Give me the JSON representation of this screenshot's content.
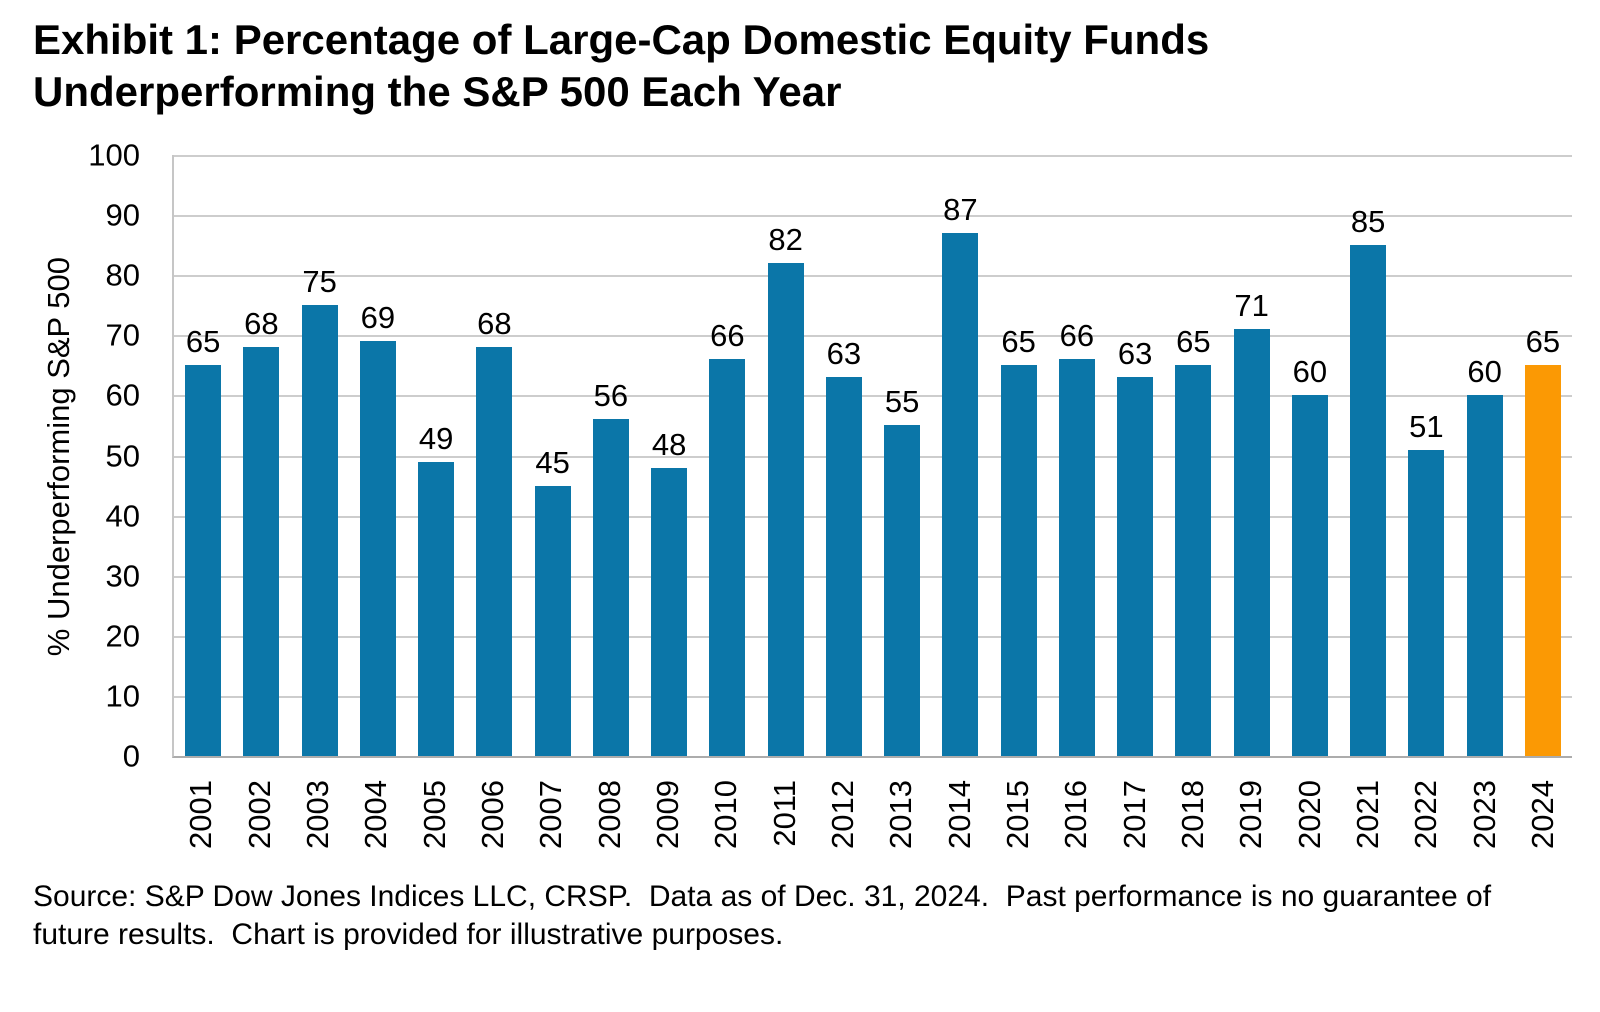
{
  "title": "Exhibit 1: Percentage of Large-Cap Domestic Equity Funds Underperforming the S&P 500 Each Year",
  "source_note": "Source: S&P Dow Jones Indices LLC, CRSP.  Data as of Dec. 31, 2024.  Past performance is no guarantee of future results.  Chart is provided for illustrative purposes.",
  "chart_data": {
    "type": "bar",
    "title": "Exhibit 1: Percentage of Large-Cap Domestic Equity Funds Underperforming the S&P 500 Each Year",
    "categories": [
      "2001",
      "2002",
      "2003",
      "2004",
      "2005",
      "2006",
      "2007",
      "2008",
      "2009",
      "2010",
      "2011",
      "2012",
      "2013",
      "2014",
      "2015",
      "2016",
      "2017",
      "2018",
      "2019",
      "2020",
      "2021",
      "2022",
      "2023",
      "2024"
    ],
    "values": [
      65,
      68,
      75,
      69,
      49,
      68,
      45,
      56,
      48,
      66,
      82,
      63,
      55,
      87,
      65,
      66,
      63,
      65,
      71,
      60,
      85,
      51,
      60,
      65
    ],
    "xlabel": "",
    "ylabel": "% Underperforming S&P 500",
    "ylim": [
      0,
      100
    ],
    "ytick_step": 10,
    "grid": true,
    "legend_position": "none",
    "data_labels_shown": true,
    "bar_color": "#0B76A8",
    "highlight": {
      "category": "2024",
      "color": "#FB9904"
    },
    "gridline_color": "#CDCDCD",
    "axis_line_color": "#ACACAC",
    "text_color": "#000000"
  }
}
